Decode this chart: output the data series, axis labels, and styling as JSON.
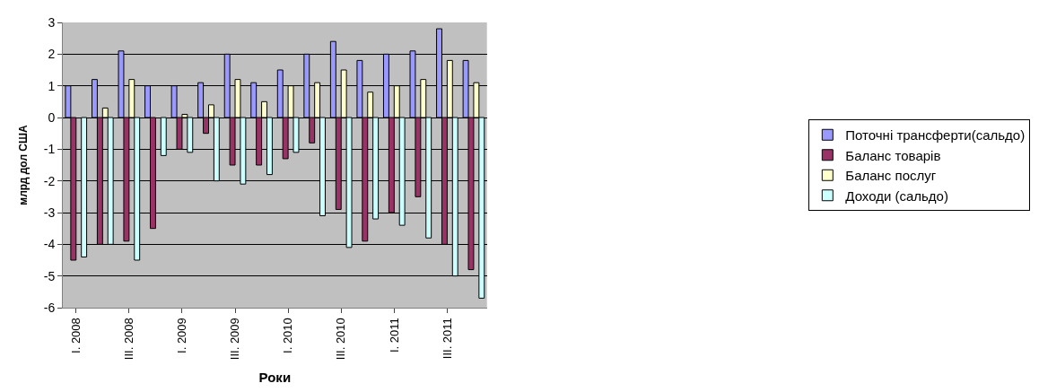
{
  "chart_data": {
    "type": "bar",
    "xlabel": "Роки",
    "ylabel": "млрд дол США",
    "categories": [
      "I. 2008",
      null,
      "III. 2008",
      null,
      "I. 2009",
      null,
      "III. 2009",
      null,
      "I. 2010",
      null,
      "III. 2010",
      null,
      "I. 2011",
      null,
      "III. 2011",
      null
    ],
    "series": [
      {
        "name": "Поточні трансферти(сальдо)",
        "color": "#9999ff",
        "values": [
          1.0,
          1.2,
          2.1,
          1.0,
          1.0,
          1.1,
          2.0,
          1.1,
          1.5,
          2.0,
          2.4,
          1.8,
          2.0,
          2.1,
          2.8,
          1.8
        ]
      },
      {
        "name": "Баланс товарів",
        "color": "#993366",
        "values": [
          -4.5,
          -4.0,
          -3.9,
          -3.5,
          -1.0,
          -0.5,
          -1.5,
          -1.5,
          -1.3,
          -0.8,
          -2.9,
          -3.9,
          -3.0,
          -2.5,
          -4.0,
          -4.8
        ]
      },
      {
        "name": "Баланс послуг",
        "color": "#ffffcc",
        "values": [
          null,
          0.3,
          1.2,
          null,
          0.1,
          0.4,
          1.2,
          0.5,
          1.0,
          1.1,
          1.5,
          0.8,
          1.0,
          1.2,
          1.8,
          1.1
        ]
      },
      {
        "name": "Доходи (сальдо)",
        "color": "#ccffff",
        "values": [
          -4.4,
          -4.0,
          -4.5,
          -1.2,
          -1.1,
          -2.0,
          -2.1,
          -1.8,
          -1.1,
          -3.1,
          -4.1,
          -3.2,
          -3.4,
          -3.8,
          -5.0,
          -5.7
        ]
      }
    ],
    "ylim": [
      -6,
      3
    ],
    "yticks": [
      -6,
      -5,
      -4,
      -3,
      -2,
      -1,
      0,
      1,
      2,
      3
    ],
    "grid": "y",
    "legend": "right"
  }
}
